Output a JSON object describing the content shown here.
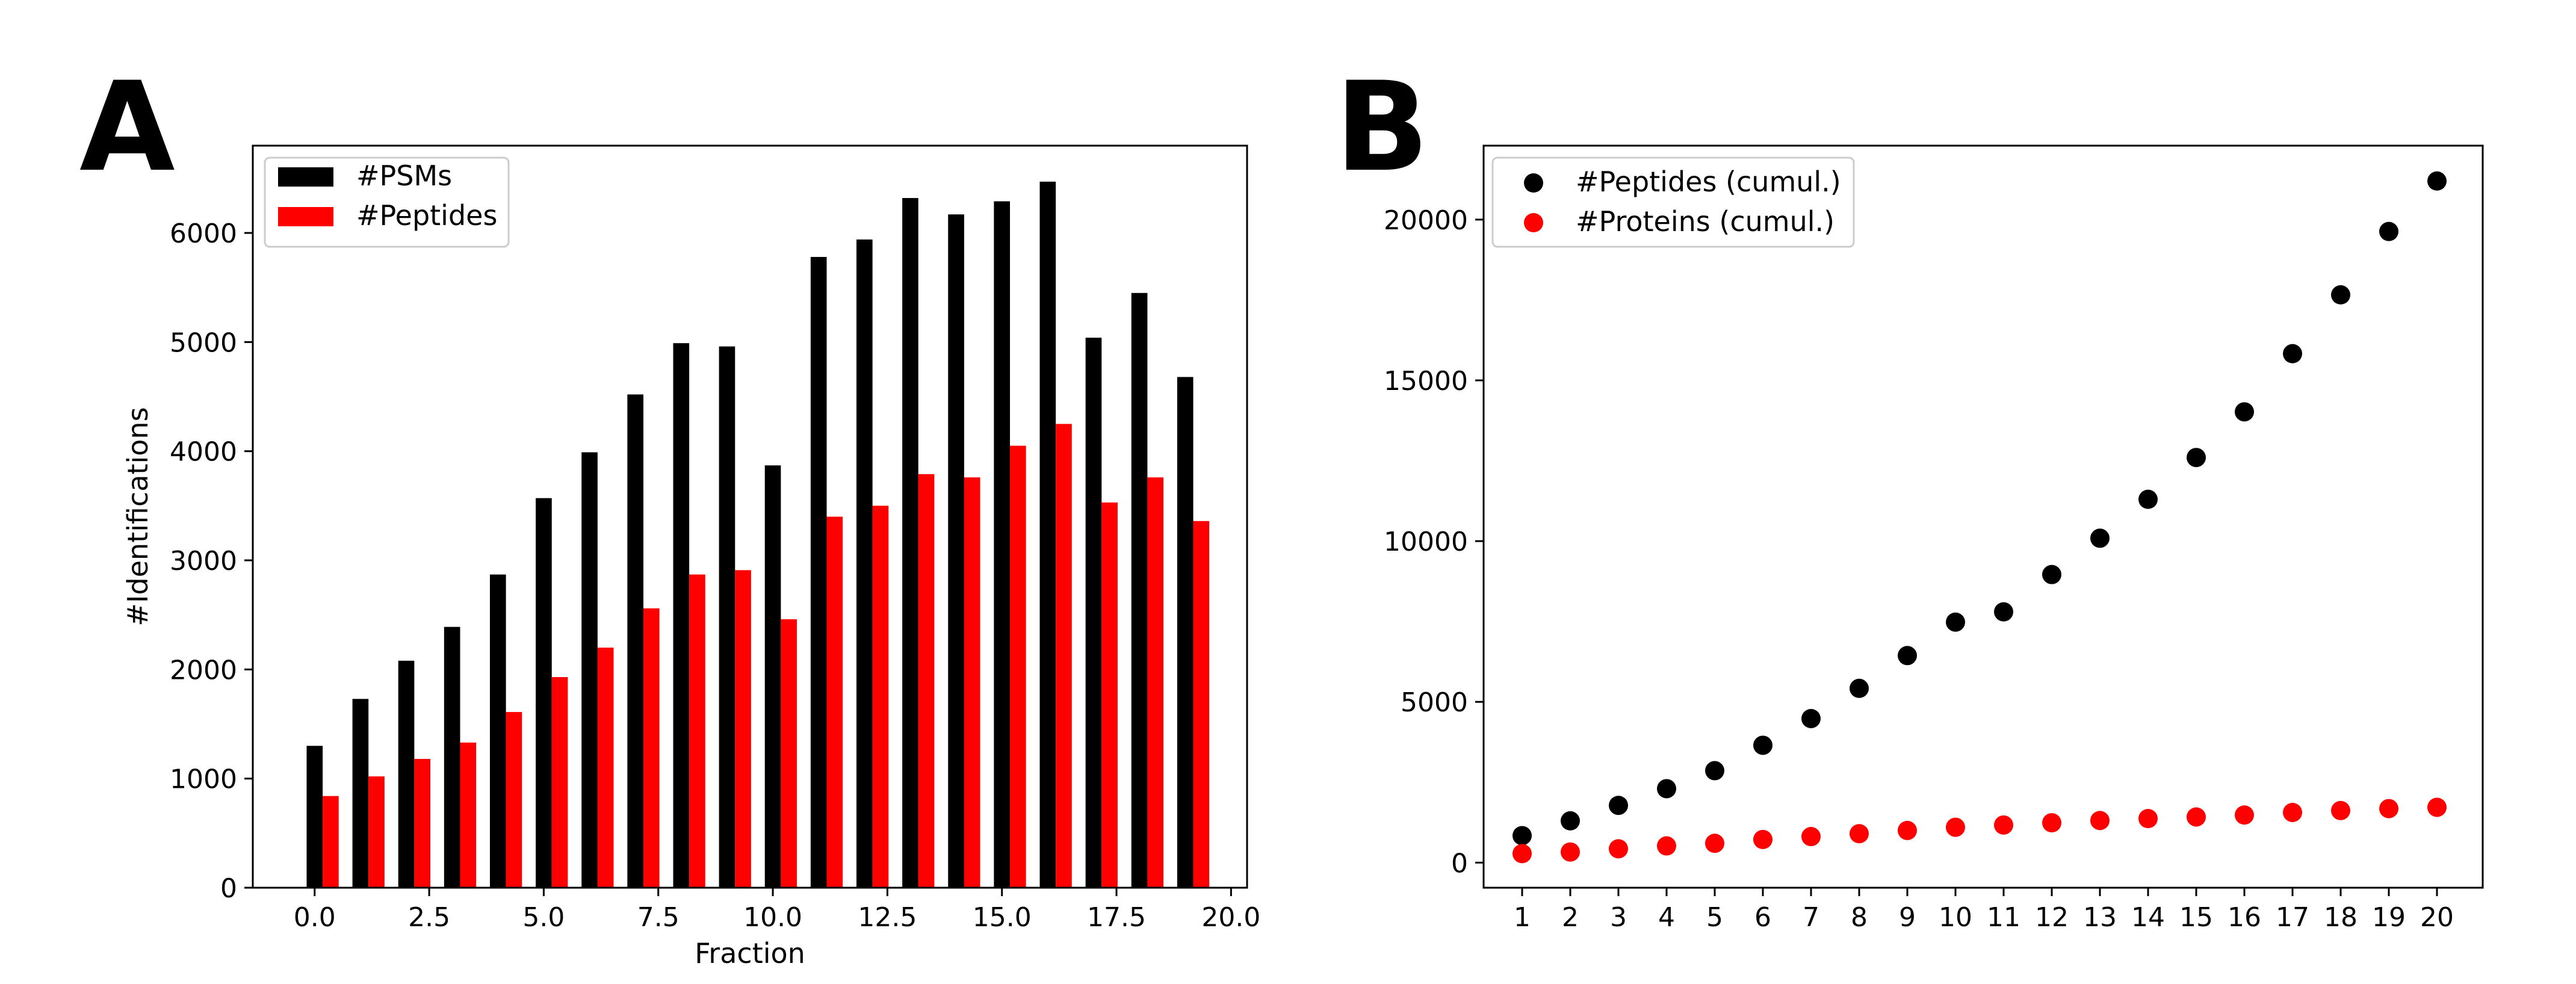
{
  "colors": {
    "black": "#000000",
    "red": "#ff0000"
  },
  "chart_data": [
    {
      "panel": "A",
      "type": "bar",
      "xlabel": "Fraction",
      "ylabel": "#Identifications",
      "xlim": [
        -1.35,
        20.35
      ],
      "ylim": [
        0,
        6800
      ],
      "xticks": [
        "0.0",
        "2.5",
        "5.0",
        "7.5",
        "10.0",
        "12.5",
        "15.0",
        "17.5",
        "20.0"
      ],
      "yticks": [
        "0",
        "1000",
        "2000",
        "3000",
        "4000",
        "5000",
        "6000"
      ],
      "legend_position": "upper-left",
      "x": [
        0,
        1,
        2,
        3,
        4,
        5,
        6,
        7,
        8,
        9,
        10,
        11,
        12,
        13,
        14,
        15,
        16,
        17,
        18,
        19
      ],
      "series": [
        {
          "name": "#PSMs",
          "color": "#000000",
          "values": [
            1300,
            1730,
            2080,
            2390,
            2870,
            3570,
            3990,
            4520,
            4990,
            4960,
            3870,
            5780,
            5940,
            6320,
            6170,
            6290,
            6470,
            5040,
            5450,
            4680
          ]
        },
        {
          "name": "#Peptides",
          "color": "#ff0000",
          "values": [
            840,
            1020,
            1180,
            1330,
            1610,
            1930,
            2200,
            2560,
            2870,
            2910,
            2460,
            3400,
            3500,
            3790,
            3760,
            4050,
            4250,
            3530,
            3760,
            3360
          ]
        }
      ]
    },
    {
      "panel": "B",
      "type": "scatter",
      "xlabel": "",
      "ylabel": "",
      "xlim": [
        0.2,
        20.95
      ],
      "ylim": [
        -780,
        22300
      ],
      "xticks": [
        "1",
        "2",
        "3",
        "4",
        "5",
        "6",
        "7",
        "8",
        "9",
        "10",
        "11",
        "12",
        "13",
        "14",
        "15",
        "16",
        "17",
        "18",
        "19",
        "20"
      ],
      "yticks": [
        "0",
        "5000",
        "10000",
        "15000",
        "20000"
      ],
      "legend_position": "upper-left",
      "x": [
        1,
        2,
        3,
        4,
        5,
        6,
        7,
        8,
        9,
        10,
        11,
        12,
        13,
        14,
        15,
        16,
        17,
        18,
        19,
        20
      ],
      "series": [
        {
          "name": "#Peptides (cumul.)",
          "color": "#000000",
          "values": [
            840,
            1300,
            1780,
            2300,
            2860,
            3650,
            4480,
            5420,
            6440,
            7480,
            7800,
            8960,
            10090,
            11300,
            12600,
            14020,
            15830,
            17660,
            19630,
            21200
          ]
        },
        {
          "name": "#Proteins (cumul.)",
          "color": "#ff0000",
          "values": [
            280,
            330,
            430,
            520,
            600,
            720,
            810,
            900,
            1000,
            1100,
            1170,
            1240,
            1310,
            1370,
            1420,
            1480,
            1560,
            1620,
            1680,
            1720
          ]
        }
      ]
    }
  ],
  "panel_labels": {
    "a": "A",
    "b": "B"
  }
}
